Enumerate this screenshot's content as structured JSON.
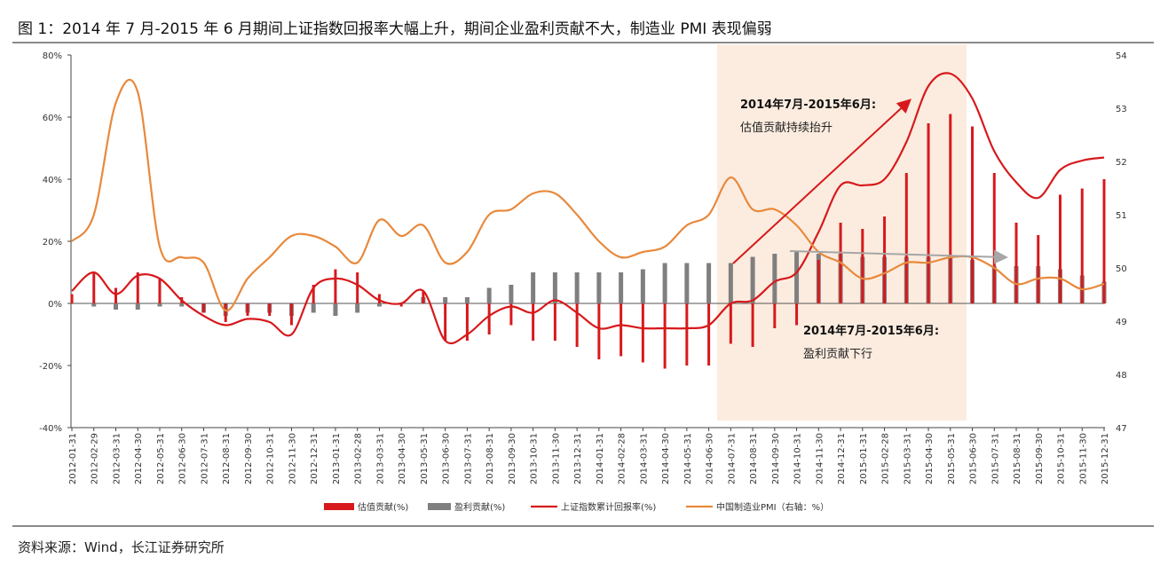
{
  "title": "图 1：2014 年 7 月-2015 年 6 月期间上证指数回报率大幅上升，期间企业盈利贡献不大，制造业 PMI 表现偏弱",
  "source": "资料来源：Wind，长江证券研究所",
  "chart_data": {
    "type": "bar",
    "categories": [
      "2012-01-31",
      "2012-02-29",
      "2012-03-31",
      "2012-04-30",
      "2012-05-31",
      "2012-06-30",
      "2012-07-31",
      "2012-08-31",
      "2012-09-30",
      "2012-10-31",
      "2012-11-30",
      "2012-12-31",
      "2013-01-31",
      "2013-02-28",
      "2013-03-31",
      "2013-04-30",
      "2013-05-31",
      "2013-06-30",
      "2013-07-31",
      "2013-08-31",
      "2013-09-30",
      "2013-10-31",
      "2013-11-30",
      "2013-12-31",
      "2014-01-31",
      "2014-02-28",
      "2014-03-31",
      "2014-04-30",
      "2014-05-31",
      "2014-06-30",
      "2014-07-31",
      "2014-08-31",
      "2014-09-30",
      "2014-10-31",
      "2014-11-30",
      "2014-12-31",
      "2015-01-31",
      "2015-02-28",
      "2015-03-31",
      "2015-04-30",
      "2015-05-31",
      "2015-06-30",
      "2015-07-31",
      "2015-08-31",
      "2015-09-30",
      "2015-10-31",
      "2015-11-30",
      "2015-12-31"
    ],
    "series": [
      {
        "name": "盈利贡献(%)",
        "type": "bar",
        "color": "#7f7f7f",
        "values": [
          0,
          -1,
          -2,
          -2,
          -1,
          -1,
          -3,
          -4,
          -3,
          -3,
          -4,
          -3,
          -4,
          -3,
          -1,
          0,
          2,
          2,
          2,
          5,
          6,
          10,
          10,
          10,
          10,
          10,
          11,
          13,
          13,
          13,
          13,
          15,
          16,
          17,
          16,
          16,
          15,
          15,
          15,
          15,
          15,
          14,
          12,
          12,
          12,
          11,
          9,
          7
        ]
      },
      {
        "name": "估值贡献(%)",
        "type": "bar",
        "color": "#d7191c",
        "values": [
          3,
          10,
          5,
          10,
          8,
          2,
          -3,
          -6,
          -4,
          -4,
          -7,
          6,
          11,
          10,
          3,
          -1,
          4,
          -12,
          -12,
          -10,
          -7,
          -12,
          -12,
          -14,
          -18,
          -17,
          -19,
          -21,
          -20,
          -20,
          -13,
          -14,
          -8,
          -7,
          14,
          26,
          24,
          28,
          42,
          58,
          61,
          57,
          42,
          26,
          22,
          35,
          37,
          40
        ]
      },
      {
        "name": "上证指数累计回报率(%)",
        "type": "line",
        "color": "#d7191c",
        "values": [
          4,
          10,
          3,
          9,
          8,
          1,
          -4,
          -7,
          -5,
          -6,
          -10,
          5,
          8,
          6,
          1,
          0,
          4,
          -12,
          -10,
          -4,
          -1,
          -3,
          1,
          -3,
          -8,
          -7,
          -8,
          -8,
          -8,
          -7,
          0,
          1,
          7,
          10,
          23,
          38,
          38,
          40,
          52,
          70,
          74,
          66,
          49,
          39,
          34,
          43,
          46,
          47
        ]
      },
      {
        "name": "中国制造业PMI（右轴：%）",
        "type": "line",
        "axis": "y2",
        "color": "#e8893c",
        "values": [
          50.5,
          51.0,
          53.1,
          53.3,
          50.4,
          50.2,
          50.1,
          49.2,
          49.8,
          50.2,
          50.6,
          50.6,
          50.4,
          50.1,
          50.9,
          50.6,
          50.8,
          50.1,
          50.3,
          51.0,
          51.1,
          51.4,
          51.4,
          51.0,
          50.5,
          50.2,
          50.3,
          50.4,
          50.8,
          51.0,
          51.7,
          51.1,
          51.1,
          50.8,
          50.3,
          50.1,
          49.8,
          49.9,
          50.1,
          50.1,
          50.2,
          50.2,
          50.0,
          49.7,
          49.8,
          49.8,
          49.6,
          49.7
        ]
      }
    ],
    "ylim": [
      -40,
      80
    ],
    "yticks": [
      {
        "value": -40,
        "label": "-40%"
      },
      {
        "value": -20,
        "label": "-20%"
      },
      {
        "value": 0,
        "label": "0%"
      },
      {
        "value": 20,
        "label": "20%"
      },
      {
        "value": 40,
        "label": "40%"
      },
      {
        "value": 60,
        "label": "60%"
      },
      {
        "value": 80,
        "label": "80%"
      }
    ],
    "y2lim": [
      47,
      54
    ],
    "y2ticks": [
      47,
      48,
      49,
      50,
      51,
      52,
      53,
      54
    ],
    "annotations": [
      "2014年7月-2015年6月:",
      "估值贡献持续抬升",
      "2014年7月-2015年6月:",
      "盈利贡献下行"
    ]
  }
}
